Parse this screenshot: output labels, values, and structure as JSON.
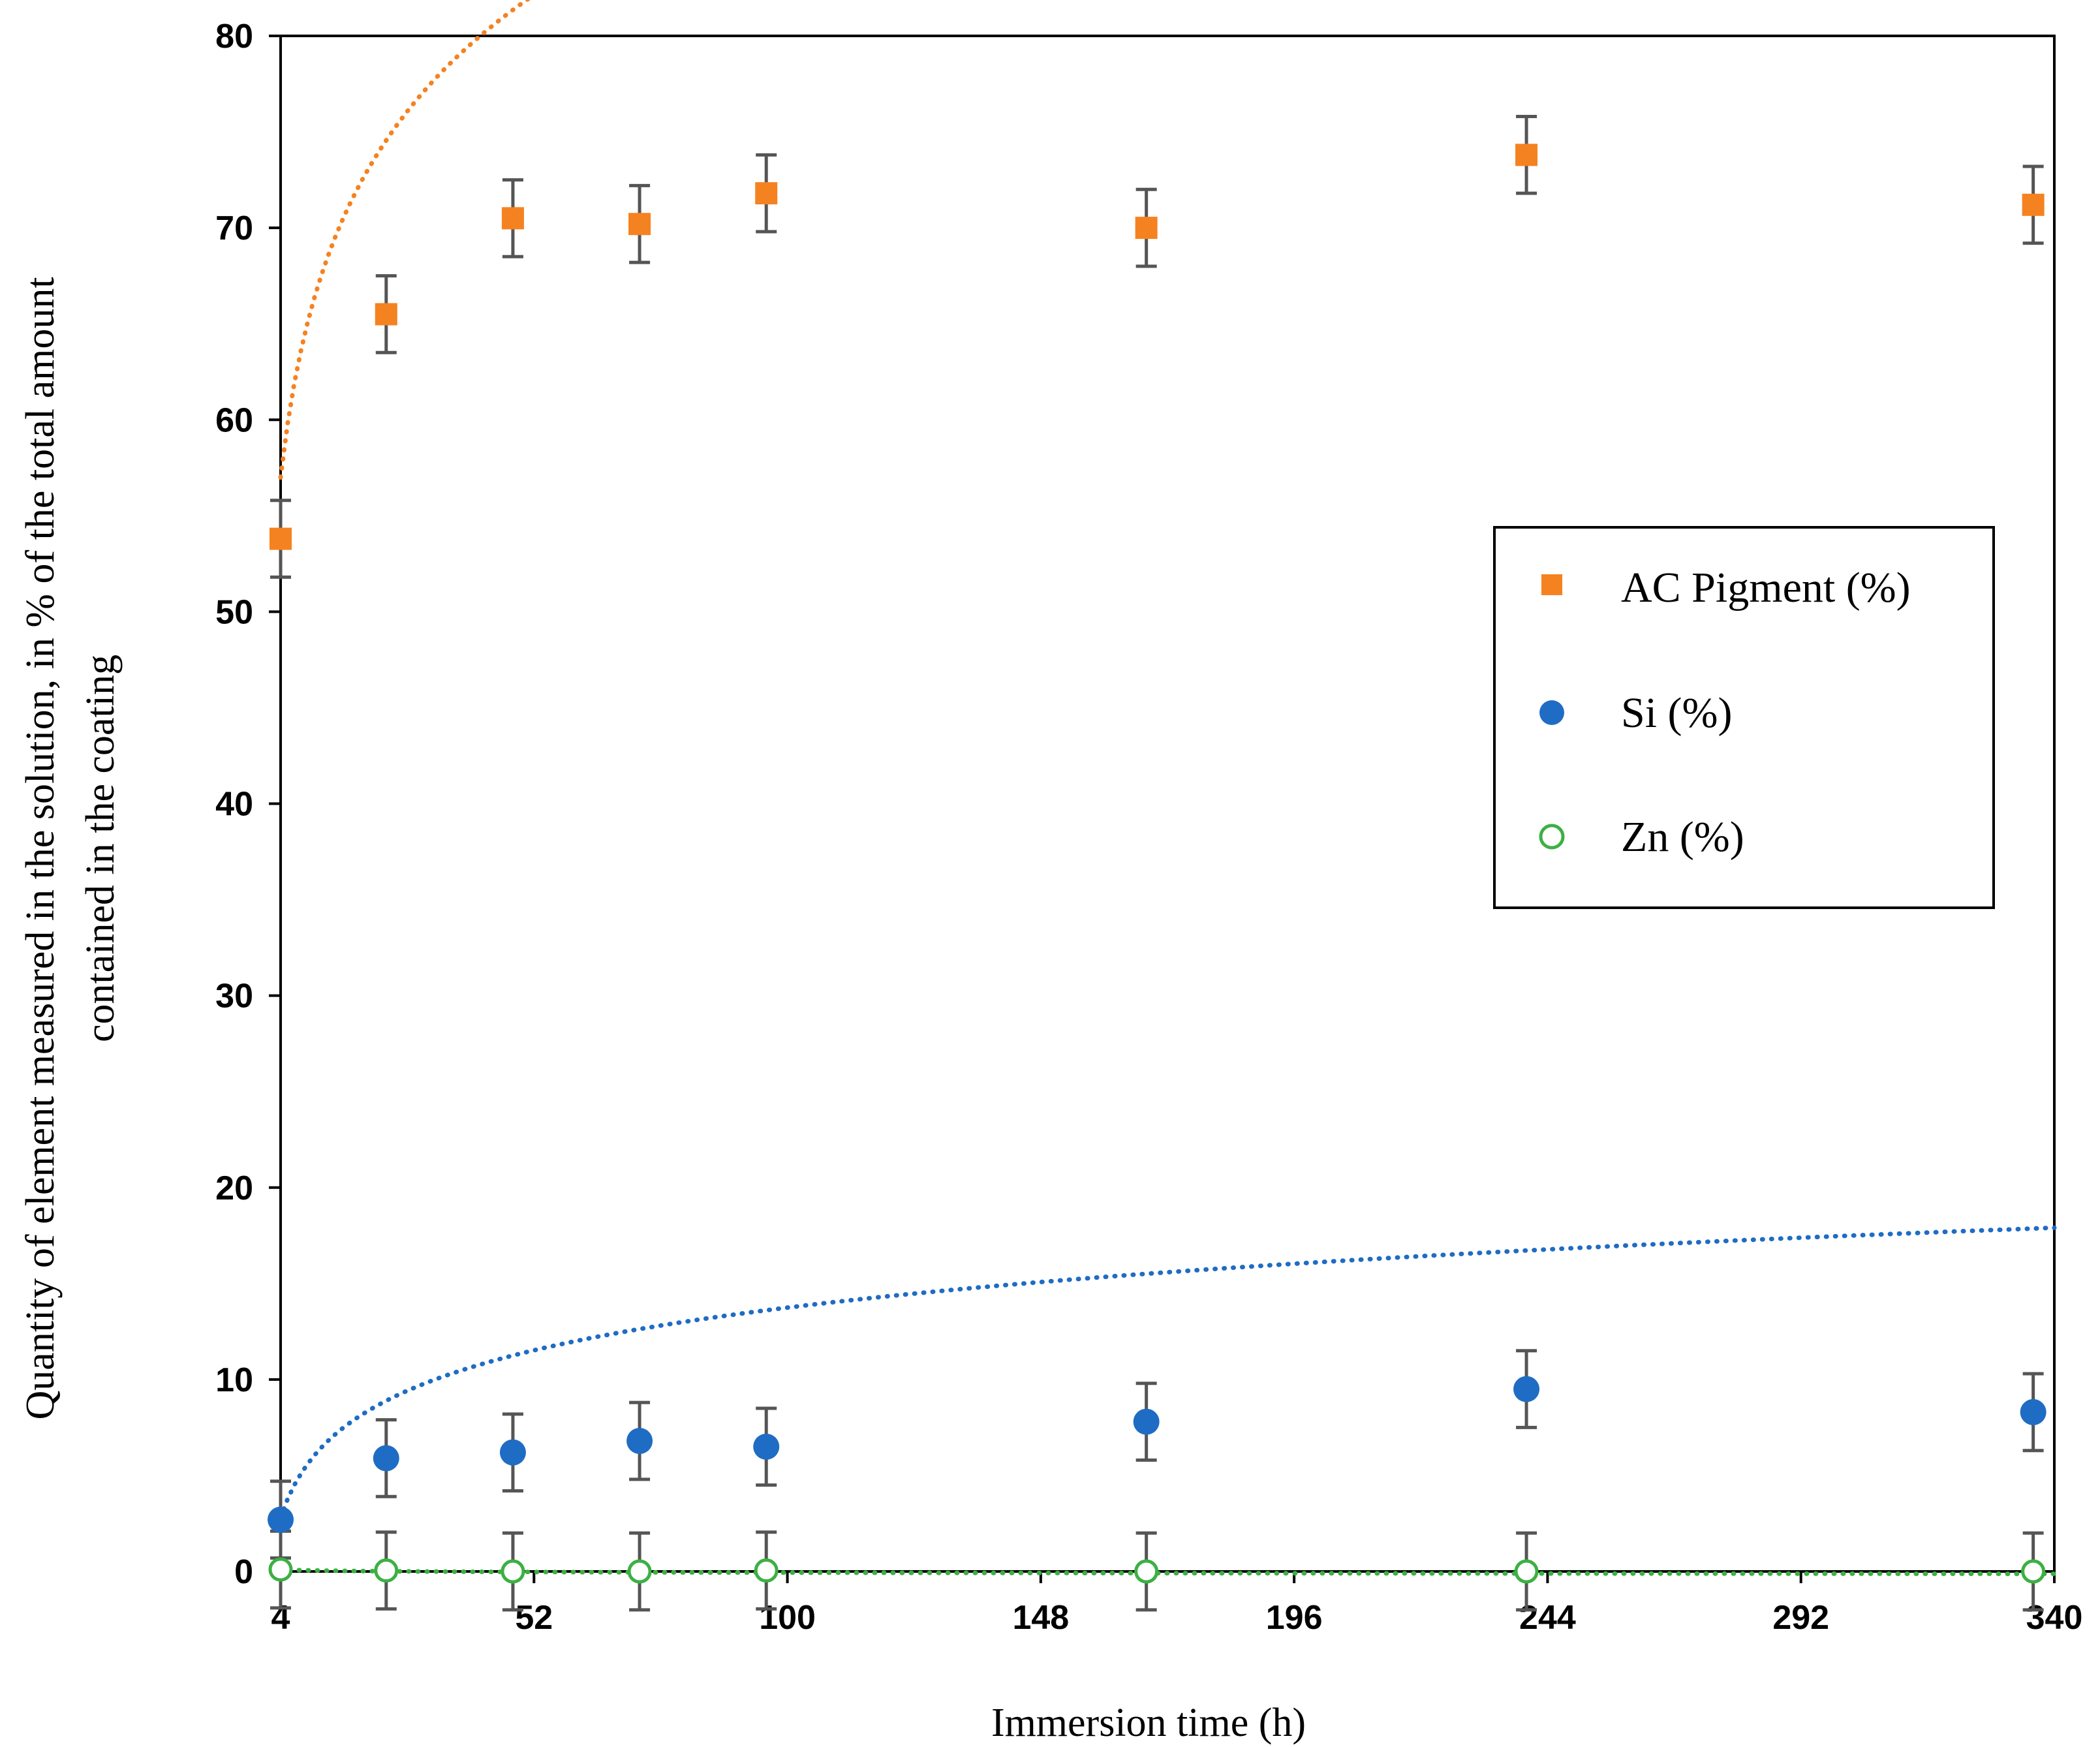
{
  "chart_data": {
    "type": "scatter",
    "title": "",
    "xlabel": "Immersion time (h)",
    "ylabel_line1": "Quantity of element measured in the solution, in % of the total amount",
    "ylabel_line2": "contained in the coating",
    "xlim": [
      4,
      340
    ],
    "ylim": [
      0,
      80
    ],
    "xticks": [
      4,
      52,
      100,
      148,
      196,
      244,
      292,
      340
    ],
    "yticks": [
      0,
      10,
      20,
      30,
      40,
      50,
      60,
      70,
      80
    ],
    "grid": false,
    "legend_position": "center-right",
    "series": [
      {
        "name": "AC Pigment (%)",
        "marker": "square",
        "color": "#f58220",
        "x": [
          4,
          24,
          48,
          72,
          96,
          168,
          240,
          336
        ],
        "y": [
          53.8,
          65.5,
          70.5,
          70.2,
          71.8,
          70.0,
          73.8,
          71.2
        ],
        "error": [
          2,
          2,
          2,
          2,
          2,
          2,
          2,
          2
        ],
        "trend": {
          "type": "log",
          "a": 57.0,
          "b": 9.8,
          "x0": 4
        }
      },
      {
        "name": "Si (%)",
        "marker": "circle",
        "color": "#1f6cc4",
        "x": [
          4,
          24,
          48,
          72,
          96,
          168,
          240,
          336
        ],
        "y": [
          2.7,
          5.9,
          6.2,
          6.8,
          6.5,
          7.8,
          9.5,
          8.3
        ],
        "error": [
          2,
          2,
          2,
          2,
          2,
          2,
          2,
          2
        ],
        "trend": {
          "type": "log",
          "a": 2.8,
          "b": 3.4,
          "x0": 4
        }
      },
      {
        "name": "Zn (%)",
        "marker": "open-circle",
        "color": "#3cb043",
        "x": [
          4,
          24,
          48,
          72,
          96,
          168,
          240,
          336
        ],
        "y": [
          0.1,
          0.05,
          0.0,
          0.0,
          0.05,
          0.0,
          0.0,
          0.0
        ],
        "error": [
          2,
          2,
          2,
          2,
          2,
          2,
          2,
          2
        ],
        "trend": {
          "type": "log",
          "a": 0.1,
          "b": -0.05,
          "x0": 4
        }
      }
    ]
  }
}
